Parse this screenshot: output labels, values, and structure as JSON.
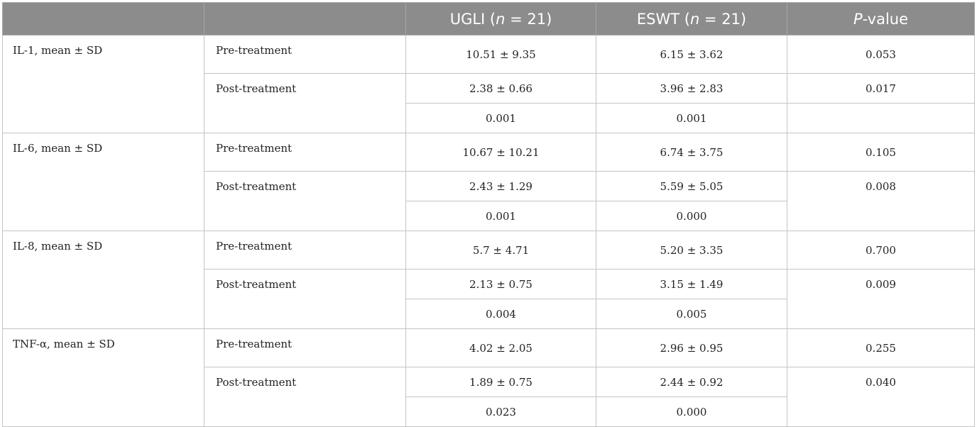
{
  "header": {
    "col1": "",
    "col2": "",
    "ugli": {
      "prefix": "UGLI (",
      "n": "n",
      "suffix": " = 21)"
    },
    "eswt": {
      "prefix": "ESWT (",
      "n": "n",
      "suffix": " = 21)"
    },
    "pvalue": {
      "p": "P",
      "suffix": "-value"
    }
  },
  "groups": [
    {
      "label": "IL-1, mean ± SD",
      "pre": {
        "period": "Pre-treatment",
        "ugli": "10.51 ± 9.35",
        "eswt": "6.15 ± 3.62",
        "p": "0.053"
      },
      "post": {
        "period": "Post-treatment",
        "ugli": "2.38 ± 0.66",
        "eswt": "3.96 ± 2.83",
        "p": "0.017"
      },
      "within": {
        "ugli": "0.001",
        "eswt": "0.001",
        "p": ""
      }
    },
    {
      "label": "IL-6, mean ± SD",
      "pre": {
        "period": "Pre-treatment",
        "ugli": "10.67 ± 10.21",
        "eswt": "6.74 ± 3.75",
        "p": "0.105"
      },
      "post": {
        "period": "Post-treatment",
        "ugli": "2.43 ± 1.29",
        "eswt": "5.59 ± 5.05",
        "p": "0.008"
      },
      "within": {
        "ugli": "0.001",
        "eswt": "0.000"
      }
    },
    {
      "label": "IL-8, mean ± SD",
      "pre": {
        "period": "Pre-treatment",
        "ugli": "5.7 ± 4.71",
        "eswt": "5.20 ± 3.35",
        "p": "0.700"
      },
      "post": {
        "period": "Post-treatment",
        "ugli": "2.13 ± 0.75",
        "eswt": "3.15 ± 1.49",
        "p": "0.009"
      },
      "within": {
        "ugli": "0.004",
        "eswt": "0.005"
      }
    },
    {
      "label": "TNF-α, mean ± SD",
      "pre": {
        "period": "Pre-treatment",
        "ugli": "4.02 ± 2.05",
        "eswt": "2.96 ± 0.95",
        "p": "0.255"
      },
      "post": {
        "period": "Post-treatment",
        "ugli": "1.89 ± 0.75",
        "eswt": "2.44 ± 0.92",
        "p": "0.040"
      },
      "within": {
        "ugli": "0.023",
        "eswt": "0.000"
      }
    }
  ]
}
